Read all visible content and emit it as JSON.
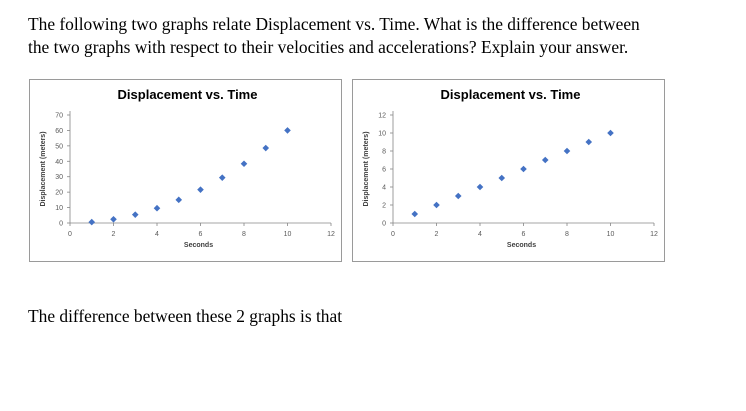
{
  "question": {
    "line1": "The following two graphs relate Displacement vs. Time. What is the difference between",
    "line2": "the two graphs with respect to their velocities and accelerations? Explain your answer."
  },
  "answer_text": "The difference between these 2 graphs is that",
  "chart_data": [
    {
      "type": "scatter",
      "title": "Displacement vs. Time",
      "xlabel": "Seconds",
      "ylabel": "Displacement (meters)",
      "xlim": [
        0,
        12
      ],
      "ylim": [
        0,
        70
      ],
      "xticks": [
        "0",
        "2",
        "4",
        "6",
        "8",
        "10",
        "12"
      ],
      "yticks": [
        "0",
        "10",
        "20",
        "30",
        "40",
        "50",
        "60",
        "70"
      ],
      "grid": false,
      "marker_color": "#4472C4",
      "x": [
        1,
        2,
        3,
        4,
        5,
        6,
        7,
        8,
        9,
        10
      ],
      "y": [
        0.6,
        2.4,
        5.4,
        9.6,
        15,
        21.6,
        29.4,
        38.4,
        48.6,
        60
      ]
    },
    {
      "type": "scatter",
      "title": "Displacement vs. Time",
      "xlabel": "Seconds",
      "ylabel": "Displacement (meters)",
      "xlim": [
        0,
        12
      ],
      "ylim": [
        0,
        12
      ],
      "xticks": [
        "0",
        "2",
        "4",
        "6",
        "8",
        "10",
        "12"
      ],
      "yticks": [
        "0",
        "2",
        "4",
        "6",
        "8",
        "10",
        "12"
      ],
      "grid": false,
      "marker_color": "#4472C4",
      "x": [
        1,
        2,
        3,
        4,
        5,
        6,
        7,
        8,
        9,
        10
      ],
      "y": [
        1,
        2,
        3,
        4,
        5,
        6,
        7,
        8,
        9,
        10
      ]
    }
  ]
}
